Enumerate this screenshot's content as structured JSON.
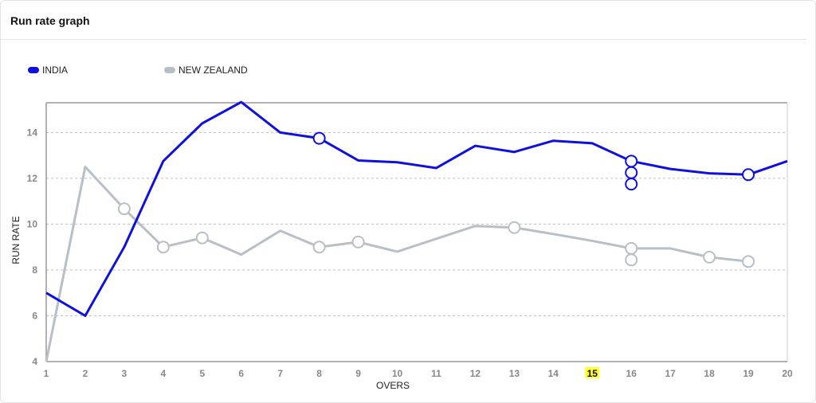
{
  "header": {
    "title": "Run rate graph"
  },
  "chart_data": {
    "type": "line",
    "xlabel": "OVERS",
    "ylabel": "RUN RATE",
    "x": [
      1,
      2,
      3,
      4,
      5,
      6,
      7,
      8,
      9,
      10,
      11,
      12,
      13,
      14,
      15,
      16,
      17,
      18,
      19,
      20
    ],
    "ylim": [
      4,
      15.3
    ],
    "yticks": [
      4,
      6,
      8,
      10,
      12,
      14
    ],
    "highlight_over": "15",
    "grid": true,
    "legend_position": "top-left",
    "series": [
      {
        "name": "INDIA",
        "color": "#1010dd",
        "values": [
          7.0,
          6.0,
          9.0,
          12.75,
          14.4,
          15.33,
          14.0,
          13.75,
          12.78,
          12.7,
          12.45,
          13.42,
          13.15,
          13.64,
          13.53,
          12.75,
          12.41,
          12.22,
          12.16,
          12.75
        ],
        "wickets": [
          {
            "over": 8,
            "rate": 13.75
          },
          {
            "over": 16,
            "rate": 12.75
          },
          {
            "over": 16,
            "rate": 12.25
          },
          {
            "over": 16,
            "rate": 11.75
          },
          {
            "over": 19,
            "rate": 12.16
          }
        ]
      },
      {
        "name": "NEW ZEALAND",
        "color": "#b8bfc7",
        "values": [
          4.0,
          12.5,
          10.67,
          9.0,
          9.4,
          8.67,
          9.71,
          9.0,
          9.22,
          8.8,
          9.36,
          9.92,
          9.85,
          9.57,
          9.27,
          8.94,
          8.94,
          8.56,
          8.37,
          null
        ],
        "wickets": [
          {
            "over": 3,
            "rate": 10.67
          },
          {
            "over": 4,
            "rate": 9.0
          },
          {
            "over": 5,
            "rate": 9.4
          },
          {
            "over": 8,
            "rate": 9.0
          },
          {
            "over": 9,
            "rate": 9.22
          },
          {
            "over": 13,
            "rate": 9.85
          },
          {
            "over": 16,
            "rate": 8.94
          },
          {
            "over": 16,
            "rate": 8.44
          },
          {
            "over": 18,
            "rate": 8.56
          },
          {
            "over": 19,
            "rate": 8.37
          }
        ]
      }
    ]
  }
}
